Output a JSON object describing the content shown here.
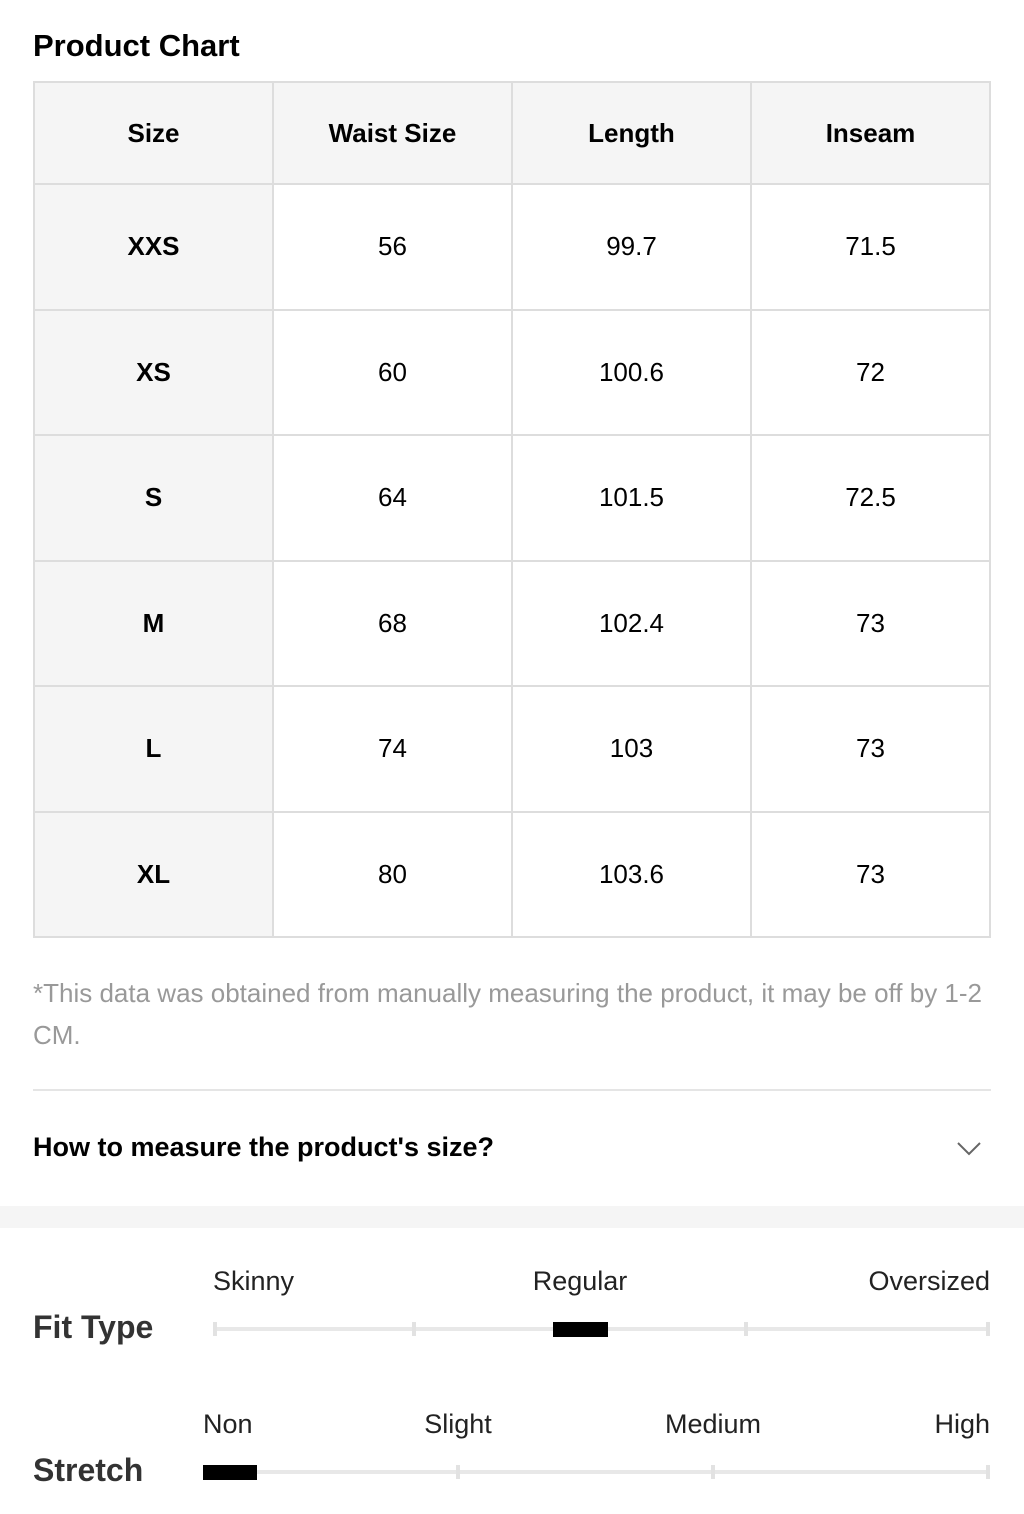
{
  "header": {
    "title": "Product Chart"
  },
  "table": {
    "columns": [
      "Size",
      "Waist Size",
      "Length",
      "Inseam"
    ],
    "rows": [
      [
        "XXS",
        56,
        99.7,
        71.5
      ],
      [
        "XS",
        60,
        100.6,
        72
      ],
      [
        "S",
        64,
        101.5,
        72.5
      ],
      [
        "M",
        68,
        102.4,
        73
      ],
      [
        "L",
        74,
        103,
        73
      ],
      [
        "XL",
        80,
        103.6,
        73
      ]
    ]
  },
  "note": "*This data was obtained from manually measuring the product, it may be off by 1-2 CM.",
  "accordion": {
    "title": "How to measure the product's size?"
  },
  "fit_type": {
    "label": "Fit Type",
    "options": [
      "Skinny",
      "Regular",
      "Oversized"
    ]
  },
  "stretch": {
    "label": "Stretch",
    "options": [
      "Non",
      "Slight",
      "Medium",
      "High"
    ]
  }
}
